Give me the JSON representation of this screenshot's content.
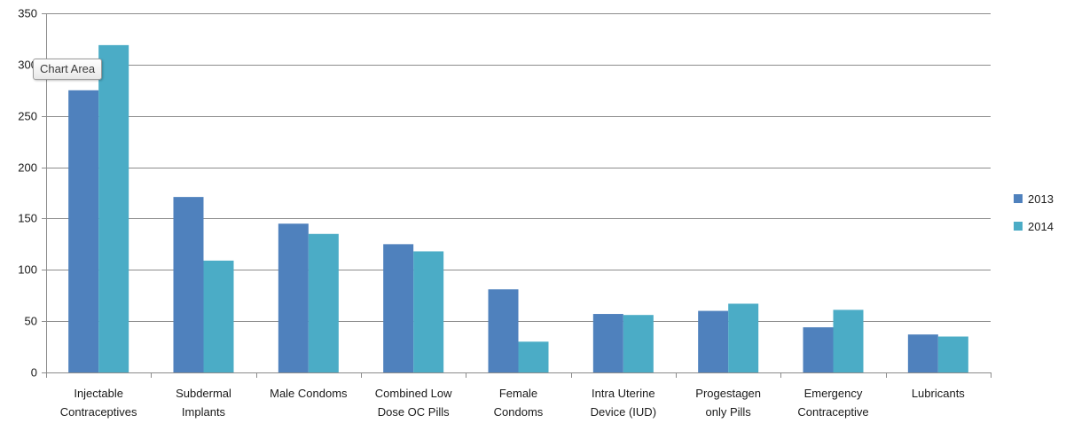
{
  "tooltip": "Chart Area",
  "colors": {
    "2013": "#4f81bd",
    "2014": "#4bacc6",
    "grid": "#8c8c8c"
  },
  "chart_data": {
    "type": "bar",
    "categories": [
      [
        "Injectable",
        "Contraceptives"
      ],
      [
        "Subdermal",
        "Implants"
      ],
      [
        "Male Condoms"
      ],
      [
        "Combined Low",
        "Dose OC Pills"
      ],
      [
        "Female",
        "Condoms"
      ],
      [
        "Intra Uterine",
        "Device (IUD)"
      ],
      [
        "Progestagen",
        "only Pills"
      ],
      [
        "Emergency",
        "Contraceptive"
      ],
      [
        "Lubricants"
      ]
    ],
    "series": [
      {
        "name": "2013",
        "values": [
          275,
          171,
          145,
          125,
          81,
          57,
          60,
          44,
          37
        ]
      },
      {
        "name": "2014",
        "values": [
          319,
          109,
          135,
          118,
          30,
          56,
          67,
          61,
          35
        ]
      }
    ],
    "ylim": [
      0,
      350
    ],
    "yticks": [
      "0",
      "50",
      "100",
      "150",
      "200",
      "250",
      "300",
      "350"
    ],
    "grid": true,
    "legend": "right"
  }
}
